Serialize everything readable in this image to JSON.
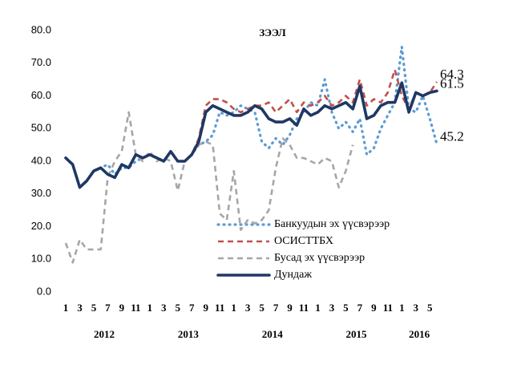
{
  "chart_data": {
    "type": "line",
    "title": "ЗЭЭЛ",
    "categories": [
      "1",
      null,
      "3",
      null,
      "5",
      null,
      "7",
      null,
      "9",
      null,
      "11",
      null,
      "1",
      null,
      "3",
      null,
      "5",
      null,
      "7",
      null,
      "9",
      null,
      "11",
      null,
      "1",
      null,
      "3",
      null,
      "5",
      null,
      "7",
      null,
      "9",
      null,
      "11",
      null,
      "1",
      null,
      "3",
      null,
      "5",
      null,
      "7",
      null,
      "9",
      null,
      "11",
      null,
      "1",
      null,
      "3",
      null,
      "5",
      null
    ],
    "years": [
      "2012",
      "2013",
      "2014",
      "2015",
      "2016"
    ],
    "ylim": [
      0,
      80
    ],
    "yticks": [
      {
        "value": 0,
        "label": "0.0"
      },
      {
        "value": 10,
        "label": "10.0"
      },
      {
        "value": 20,
        "label": "20.0"
      },
      {
        "value": 30,
        "label": "30.0"
      },
      {
        "value": 40,
        "label": "40.0"
      },
      {
        "value": 50,
        "label": "50.0"
      },
      {
        "value": 60,
        "label": "60.0"
      },
      {
        "value": 70,
        "label": "70.0"
      },
      {
        "value": 80,
        "label": "80.0"
      }
    ],
    "series": [
      {
        "name": "Банкуудын эх үүсвэрээр",
        "color": "#5b9bd5",
        "style": "dotted",
        "label_last": true,
        "values": [
          41,
          39,
          32,
          34,
          37,
          38,
          39,
          36,
          38,
          38,
          40,
          41,
          42,
          41,
          40,
          43,
          40,
          40,
          42,
          45,
          46,
          48,
          55,
          54,
          55,
          57,
          56,
          55,
          46,
          44,
          47,
          45,
          48,
          53,
          55,
          58,
          57,
          65,
          55,
          50,
          52,
          49,
          53,
          42,
          44,
          50,
          54,
          58,
          75,
          56,
          55,
          60,
          53,
          45.2
        ]
      },
      {
        "name": "ОСИСТТБХ",
        "color": "#c0504d",
        "style": "dashed",
        "label_last": true,
        "values": [
          41,
          39,
          32,
          34,
          37,
          38,
          36,
          35,
          39,
          38,
          42,
          41,
          42,
          41,
          40,
          43,
          40,
          40,
          42,
          47,
          57,
          59,
          59,
          58,
          56,
          55,
          56,
          57,
          57,
          58,
          55,
          57,
          59,
          55,
          58,
          57,
          58,
          60,
          57,
          58,
          60,
          58,
          65,
          57,
          59,
          58,
          61,
          68,
          60,
          56,
          61,
          60,
          61,
          64.3
        ]
      },
      {
        "name": "Бусад эх үүсвэрээр",
        "color": "#a6a6a6",
        "style": "dashed",
        "label_last": false,
        "values": [
          15,
          9,
          16,
          13,
          13,
          13,
          35,
          40,
          43,
          55,
          42,
          40,
          43,
          40,
          41,
          40,
          31,
          40,
          42,
          45,
          46,
          45,
          24,
          22,
          37,
          19,
          22,
          21,
          22,
          25,
          38,
          47,
          45,
          41,
          41,
          40,
          39,
          41,
          40,
          32,
          37,
          45,
          null,
          null,
          null,
          null,
          null,
          null,
          null,
          null,
          null,
          null,
          null,
          null
        ]
      },
      {
        "name": "Дундаж",
        "color": "#1f3864",
        "style": "solid",
        "label_last": true,
        "values": [
          41,
          39,
          32,
          34,
          37,
          38,
          36,
          35,
          39,
          38,
          42,
          41,
          42,
          41,
          40,
          43,
          40,
          40,
          42,
          46,
          55,
          57,
          56,
          55,
          54,
          54,
          55,
          57,
          56,
          53,
          52,
          52,
          53,
          51,
          56,
          54,
          55,
          57,
          56,
          57,
          58,
          56,
          63,
          53,
          54,
          57,
          58,
          58,
          64,
          55,
          61,
          60,
          61,
          61.5
        ]
      }
    ]
  }
}
